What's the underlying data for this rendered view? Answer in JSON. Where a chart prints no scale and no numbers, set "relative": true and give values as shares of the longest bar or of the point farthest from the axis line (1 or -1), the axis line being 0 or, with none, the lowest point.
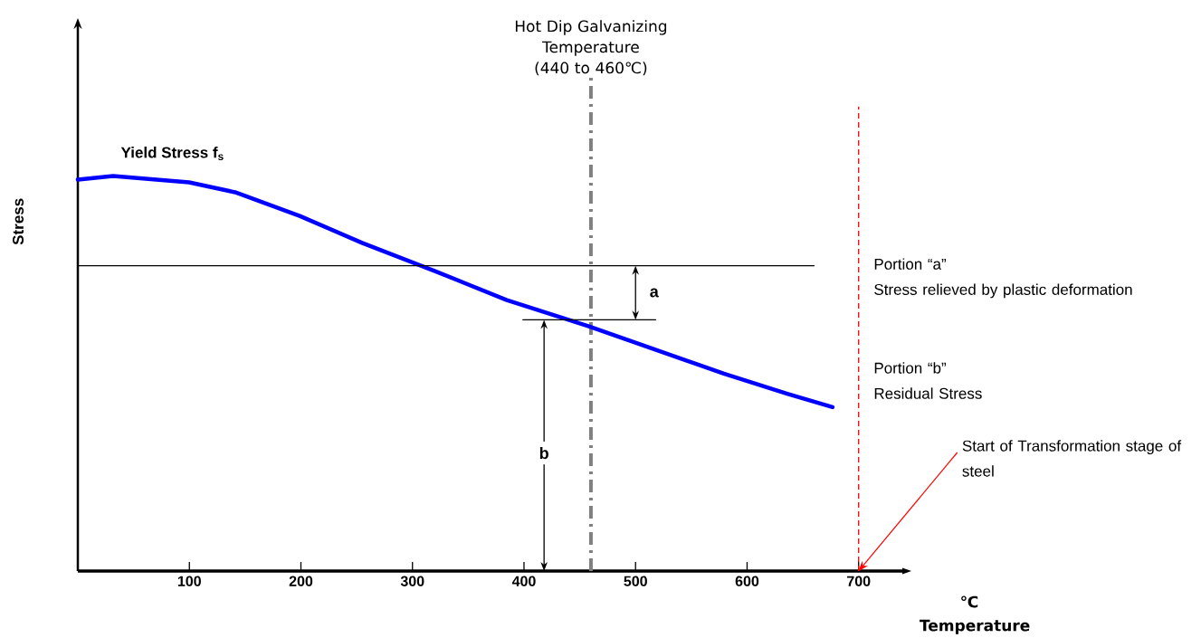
{
  "chart_data": {
    "type": "line",
    "relative": true,
    "xlabel": "℃ Temperature",
    "ylabel": "Stress",
    "tick_labels": "x",
    "x": [
      0,
      31.6,
      99.7,
      141,
      198.9,
      254.8,
      319.7,
      384.6,
      457.6,
      514.3,
      579.2,
      636,
      676.6
    ],
    "xlim": [
      0,
      740
    ],
    "xticks": [
      100,
      200,
      300,
      400,
      500,
      600,
      700
    ],
    "series": [
      {
        "name": "Yield Stress f$_{s}$",
        "color": "#0000ff",
        "values": [
          0.991,
          1,
          0.984,
          0.959,
          0.899,
          0.831,
          0.76,
          0.686,
          0.62,
          0.564,
          0.5,
          0.449,
          0.415
        ]
      },
      {
        "type": "line",
        "color": "#000000",
        "x": [
          1,
          660
        ],
        "values": [
          0.773,
          0.773
        ]
      },
      {
        "type": "line",
        "color": "#000000",
        "x": [
          399,
          518
        ],
        "values": [
          0.636,
          0.636
        ]
      }
    ],
    "ref_lines": [
      {
        "axis": "x",
        "value": 460,
        "label": "Hot Dip Galvanizing Temperature (440 to 460℃)",
        "color": "#808080",
        "line_style": "dashdot"
      },
      {
        "axis": "x",
        "value": 700,
        "color": "#ff0000",
        "line_style": "dashed"
      }
    ],
    "annotations": [
      "Portion “a”",
      "Stress relieved by plastic deformation",
      "Portion “b”",
      "Residual Stress",
      "a",
      "b",
      {
        "text": "Start of Transformation stage of steel",
        "x": 700,
        "y": 0
      }
    ]
  }
}
